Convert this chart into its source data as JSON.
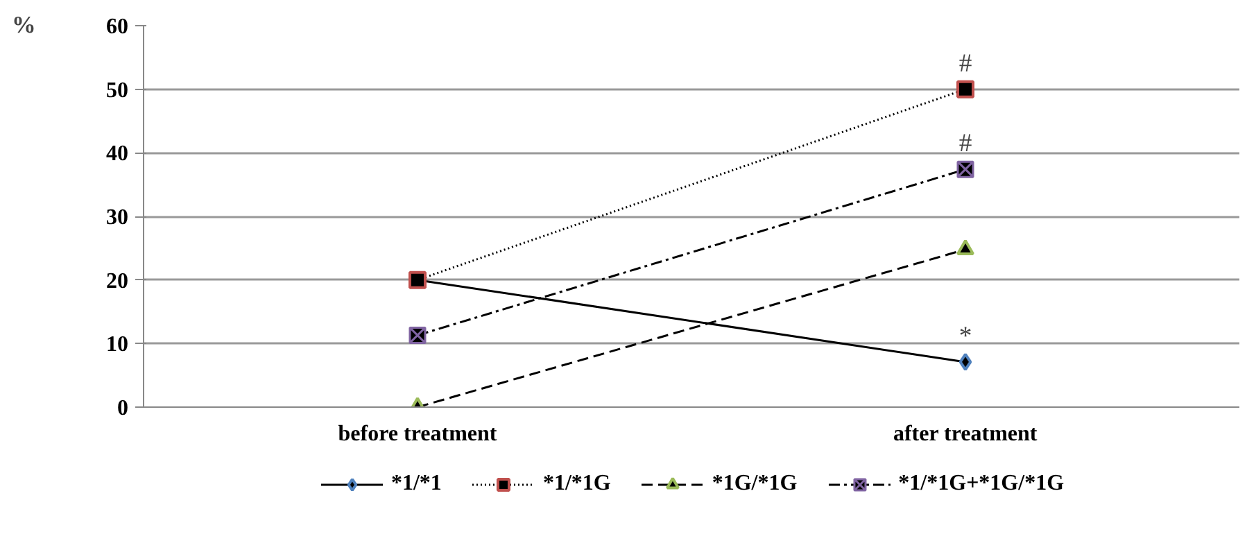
{
  "chart_data": {
    "type": "line",
    "ylabel": "%",
    "categories": [
      "before treatment",
      "after treatment"
    ],
    "ylim": [
      0,
      60
    ],
    "yticks": [
      0,
      10,
      20,
      30,
      40,
      50,
      60
    ],
    "grid": "y",
    "legend": "bottom",
    "series": [
      {
        "name": "*1/*1",
        "color": "#4f81bd",
        "values": [
          20,
          7.1
        ],
        "marker": "diamond",
        "line_style": "solid"
      },
      {
        "name": "*1/*1G",
        "color": "#c0504d",
        "values": [
          20,
          50
        ],
        "marker": "square",
        "line_style": "dotted"
      },
      {
        "name": "*1G/*1G",
        "color": "#9bbb59",
        "values": [
          0,
          24.8
        ],
        "marker": "triangle",
        "line_style": "dashed"
      },
      {
        "name": "*1/*1G+*1G/*1G",
        "color": "#8064a2",
        "values": [
          11.3,
          37.4
        ],
        "marker": "cross",
        "line_style": "dashdot"
      }
    ],
    "annotations": [
      {
        "text": "#",
        "x": "after treatment",
        "y": 50
      },
      {
        "text": "#",
        "x": "after treatment",
        "y": 37.4
      },
      {
        "text": "*",
        "x": "after treatment",
        "y": 7.1
      }
    ]
  }
}
